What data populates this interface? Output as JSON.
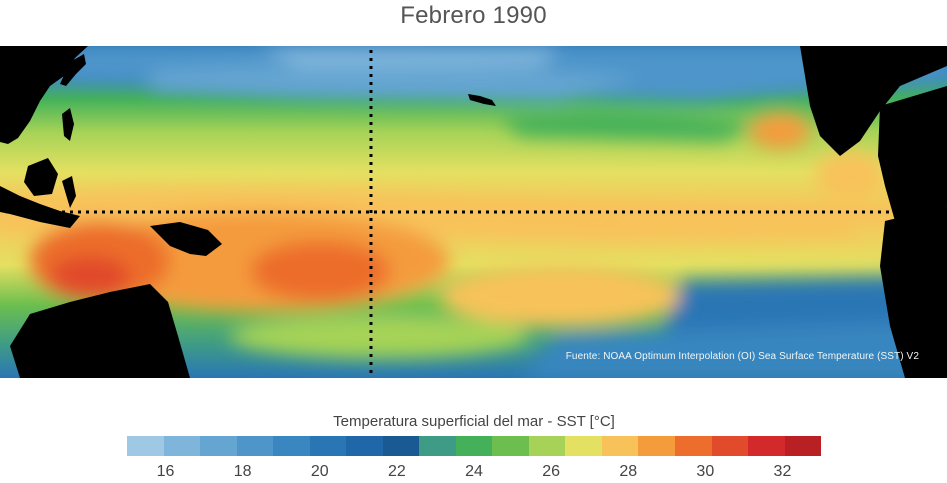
{
  "title": "Febrero 1990",
  "source_note": "Fuente: NOAA Optimum Interpolation (OI) Sea Surface Temperature (SST) V2",
  "colorbar": {
    "title": "Temperatura superficial del mar - SST  [°C]",
    "min": 15,
    "max": 33,
    "colors": [
      "#9ec8e4",
      "#7fb5db",
      "#65a5d2",
      "#4e95ca",
      "#3986c0",
      "#2a76b5",
      "#1f67a8",
      "#1a5a93",
      "#3e9b86",
      "#44b15a",
      "#6cbf4e",
      "#a6d357",
      "#e4e061",
      "#f8c25a",
      "#f49b3c",
      "#ec6d2c",
      "#e14a2a",
      "#d3292b",
      "#b82024"
    ],
    "tick_labels": [
      "16",
      "18",
      "20",
      "22",
      "24",
      "26",
      "28",
      "30",
      "32"
    ]
  },
  "map": {
    "land_color": "#000000",
    "ocean_region": "Pacific Ocean",
    "reference_lines": "dotted black lines marking the equator and the date line"
  }
}
